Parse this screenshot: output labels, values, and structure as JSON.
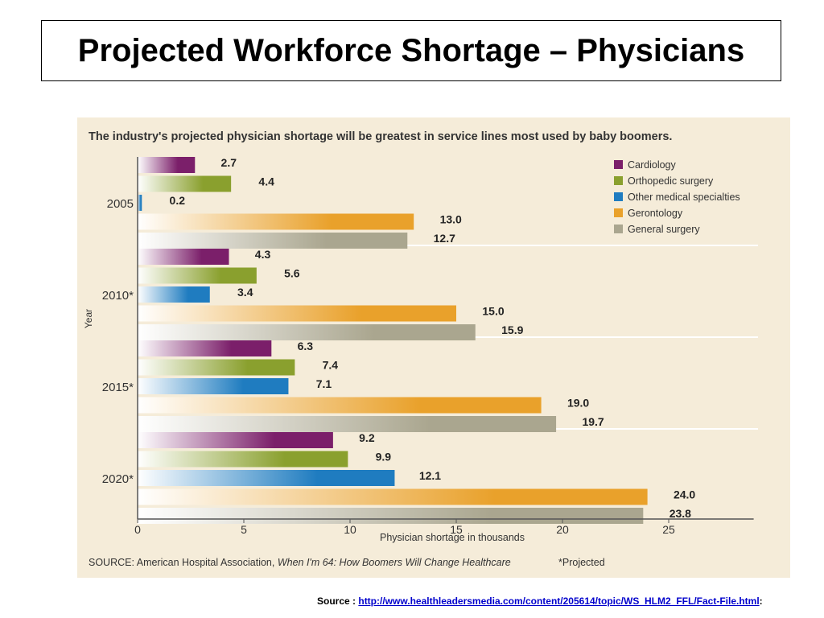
{
  "slide": {
    "title": "Projected Workforce Shortage – Physicians",
    "source_label": "Source : ",
    "source_url": "http://www.healthleadersmedia.com/content/205614/topic/WS_HLM2_FFL/Fact-File.html",
    "source_suffix": ":"
  },
  "chart_data": {
    "type": "bar",
    "orientation": "horizontal",
    "title": "The industry's projected physician shortage will be greatest in service lines most used by baby boomers.",
    "xlabel": "Physician shortage in thousands",
    "ylabel": "Year",
    "categories": [
      "2005",
      "2010*",
      "2015*",
      "2020*"
    ],
    "xlim": [
      0,
      29
    ],
    "xticks": [
      "0",
      "5",
      "10",
      "15",
      "20",
      "25"
    ],
    "series": [
      {
        "name": "Cardiology",
        "color": "#7b1f6a",
        "values": [
          2.7,
          4.3,
          6.3,
          9.2
        ],
        "labels": [
          "2.7",
          "4.3",
          "6.3",
          "9.2"
        ]
      },
      {
        "name": "Orthopedic surgery",
        "color": "#8aa02e",
        "values": [
          4.4,
          5.6,
          7.4,
          9.9
        ],
        "labels": [
          "4.4",
          "5.6",
          "7.4",
          "9.9"
        ]
      },
      {
        "name": "Other medical specialties",
        "color": "#1f7cc0",
        "values": [
          0.2,
          3.4,
          7.1,
          12.1
        ],
        "labels": [
          "0.2",
          "3.4",
          "7.1",
          "12.1"
        ]
      },
      {
        "name": "Gerontology",
        "color": "#e9a12b",
        "values": [
          13.0,
          15.0,
          19.0,
          24.0
        ],
        "labels": [
          "13.0",
          "15.0",
          "19.0",
          "24.0"
        ]
      },
      {
        "name": "General surgery",
        "color": "#aaa68f",
        "values": [
          12.7,
          15.9,
          19.7,
          23.8
        ],
        "labels": [
          "12.7",
          "15.9",
          "19.7",
          "23.8"
        ]
      }
    ],
    "legend_position": "top-right",
    "footnote_source": "SOURCE: American Hospital Association, ",
    "footnote_publication": "When I'm 64: How Boomers Will Change Healthcare",
    "footnote_projected": "*Projected",
    "colors": {
      "panel_background": "#f5ecd9"
    }
  }
}
